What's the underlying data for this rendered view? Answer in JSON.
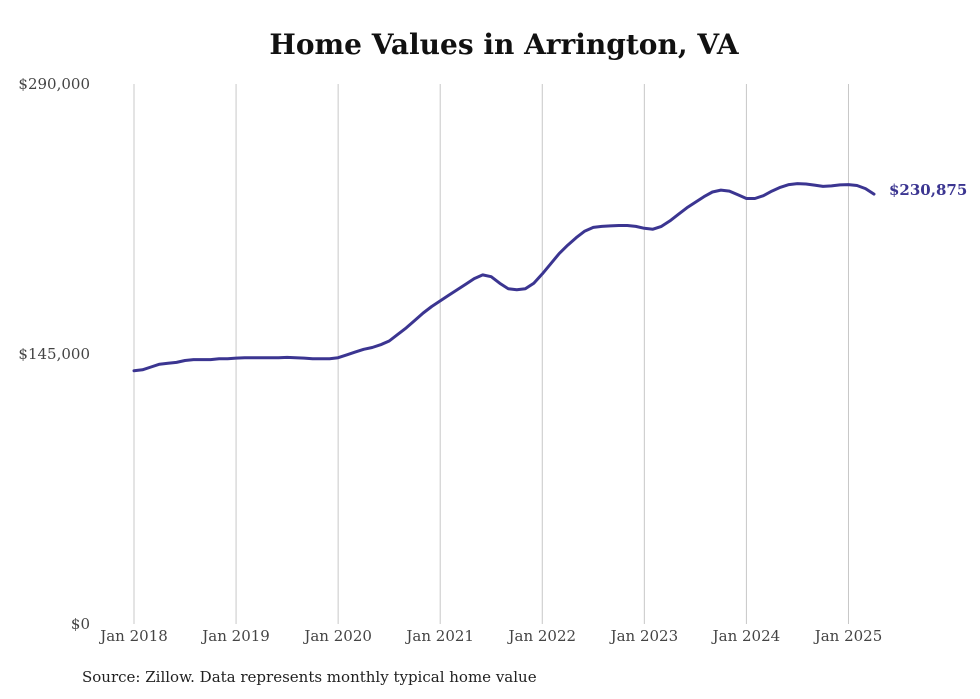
{
  "chart_data": {
    "type": "line",
    "title": "Home Values in Arrington, VA",
    "source": "Source: Zillow. Data represents monthly typical home value",
    "xlabel": "",
    "ylabel": "",
    "x_range": [
      "2018-01",
      "2025-04"
    ],
    "xticks": [
      {
        "date": "2018-01",
        "label": "Jan 2018"
      },
      {
        "date": "2019-01",
        "label": "Jan 2019"
      },
      {
        "date": "2020-01",
        "label": "Jan 2020"
      },
      {
        "date": "2021-01",
        "label": "Jan 2021"
      },
      {
        "date": "2022-01",
        "label": "Jan 2022"
      },
      {
        "date": "2023-01",
        "label": "Jan 2023"
      },
      {
        "date": "2024-01",
        "label": "Jan 2024"
      },
      {
        "date": "2025-01",
        "label": "Jan 2025"
      }
    ],
    "ylim": [
      0,
      290000
    ],
    "yticks": [
      {
        "value": 0,
        "label": "$0"
      },
      {
        "value": 145000,
        "label": "$145,000"
      },
      {
        "value": 290000,
        "label": "$290,000"
      }
    ],
    "grid": "vertical",
    "line_color": "#3b3591",
    "end_label": "$230,875",
    "series": [
      {
        "points": [
          [
            "2018-01",
            136000
          ],
          [
            "2018-02",
            136500
          ],
          [
            "2018-03",
            138000
          ],
          [
            "2018-04",
            139500
          ],
          [
            "2018-05",
            140000
          ],
          [
            "2018-06",
            140500
          ],
          [
            "2018-07",
            141500
          ],
          [
            "2018-08",
            142000
          ],
          [
            "2018-09",
            142000
          ],
          [
            "2018-10",
            142000
          ],
          [
            "2018-11",
            142500
          ],
          [
            "2018-12",
            142500
          ],
          [
            "2019-01",
            142800
          ],
          [
            "2019-02",
            143000
          ],
          [
            "2019-03",
            143000
          ],
          [
            "2019-04",
            143000
          ],
          [
            "2019-05",
            143000
          ],
          [
            "2019-06",
            143000
          ],
          [
            "2019-07",
            143200
          ],
          [
            "2019-08",
            143000
          ],
          [
            "2019-09",
            142800
          ],
          [
            "2019-10",
            142500
          ],
          [
            "2019-11",
            142500
          ],
          [
            "2019-12",
            142500
          ],
          [
            "2020-01",
            143000
          ],
          [
            "2020-02",
            144500
          ],
          [
            "2020-03",
            146000
          ],
          [
            "2020-04",
            147500
          ],
          [
            "2020-05",
            148500
          ],
          [
            "2020-06",
            150000
          ],
          [
            "2020-07",
            152000
          ],
          [
            "2020-08",
            155500
          ],
          [
            "2020-09",
            159000
          ],
          [
            "2020-10",
            163000
          ],
          [
            "2020-11",
            167000
          ],
          [
            "2020-12",
            170500
          ],
          [
            "2021-01",
            173500
          ],
          [
            "2021-02",
            176500
          ],
          [
            "2021-03",
            179500
          ],
          [
            "2021-04",
            182500
          ],
          [
            "2021-05",
            185500
          ],
          [
            "2021-06",
            187500
          ],
          [
            "2021-07",
            186500
          ],
          [
            "2021-08",
            183000
          ],
          [
            "2021-09",
            180000
          ],
          [
            "2021-10",
            179500
          ],
          [
            "2021-11",
            180000
          ],
          [
            "2021-12",
            183000
          ],
          [
            "2022-01",
            188000
          ],
          [
            "2022-02",
            193500
          ],
          [
            "2022-03",
            199000
          ],
          [
            "2022-04",
            203500
          ],
          [
            "2022-05",
            207500
          ],
          [
            "2022-06",
            211000
          ],
          [
            "2022-07",
            213000
          ],
          [
            "2022-08",
            213500
          ],
          [
            "2022-09",
            213800
          ],
          [
            "2022-10",
            214000
          ],
          [
            "2022-11",
            214000
          ],
          [
            "2022-12",
            213500
          ],
          [
            "2023-01",
            212500
          ],
          [
            "2023-02",
            212000
          ],
          [
            "2023-03",
            213500
          ],
          [
            "2023-04",
            216500
          ],
          [
            "2023-05",
            220000
          ],
          [
            "2023-06",
            223500
          ],
          [
            "2023-07",
            226500
          ],
          [
            "2023-08",
            229500
          ],
          [
            "2023-09",
            232000
          ],
          [
            "2023-10",
            233000
          ],
          [
            "2023-11",
            232500
          ],
          [
            "2023-12",
            230500
          ],
          [
            "2024-01",
            228500
          ],
          [
            "2024-02",
            228500
          ],
          [
            "2024-03",
            230000
          ],
          [
            "2024-04",
            232500
          ],
          [
            "2024-05",
            234500
          ],
          [
            "2024-06",
            236000
          ],
          [
            "2024-07",
            236500
          ],
          [
            "2024-08",
            236300
          ],
          [
            "2024-09",
            235700
          ],
          [
            "2024-10",
            235000
          ],
          [
            "2024-11",
            235300
          ],
          [
            "2024-12",
            235800
          ],
          [
            "2025-01",
            236000
          ],
          [
            "2025-02",
            235500
          ],
          [
            "2025-03",
            233800
          ],
          [
            "2025-04",
            230875
          ]
        ]
      }
    ]
  }
}
